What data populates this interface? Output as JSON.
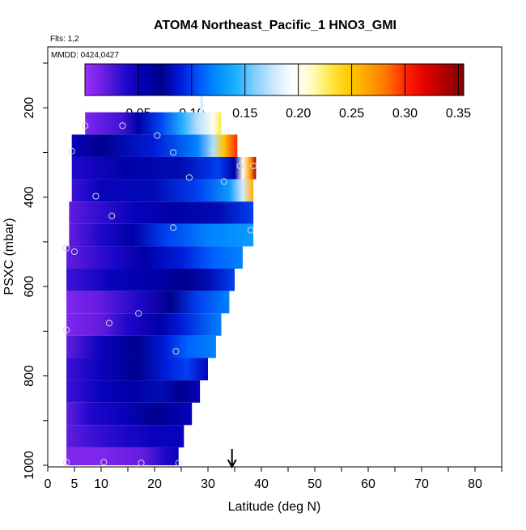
{
  "chart_data": {
    "type": "heatmap",
    "title": "ATOM4 Northeast_Pacific_1 HNO3_GMI",
    "flights_label": "Flts: 1,2",
    "dates_label": "MMDD: 0424,0427",
    "xlabel": "Latitude (deg N)",
    "ylabel": "PSXC (mbar)",
    "xlim": [
      0,
      85
    ],
    "ylim": [
      1000,
      100
    ],
    "x_ticks": [
      0,
      5,
      10,
      20,
      30,
      40,
      50,
      60,
      70,
      80
    ],
    "y_ticks": [
      200,
      400,
      600,
      800,
      1000
    ],
    "colorbar": {
      "min": 0,
      "max": 0.355,
      "ticks": [
        0.05,
        0.1,
        0.15,
        0.2,
        0.25,
        0.3,
        0.35
      ],
      "tick_labels": [
        "0.05",
        "0.10",
        "0.15",
        "0.20",
        "0.25",
        "0.30",
        "0.35"
      ],
      "colors": [
        "#9b30ff",
        "#6a1fe0",
        "#2a0ad0",
        "#0000b8",
        "#00008b",
        "#0018d8",
        "#0055ff",
        "#0090ff",
        "#1eb0ff",
        "#87d0ff",
        "#cfe8ff",
        "#ffffff",
        "#fffcc0",
        "#ffe640",
        "#ffc800",
        "#ffa000",
        "#ff7000",
        "#ff2000",
        "#e00000",
        "#b00000",
        "#800000"
      ]
    },
    "marker_latitude": 34.5,
    "rows": [
      {
        "p_top": 210,
        "p_bot": 260,
        "x_start": 7,
        "x_end": 32.5,
        "ramp": [
          [
            7,
            0.01
          ],
          [
            14,
            0.03
          ],
          [
            17,
            0.06
          ],
          [
            21,
            0.1
          ],
          [
            25,
            0.14
          ],
          [
            28,
            0.17
          ],
          [
            31,
            0.2
          ],
          [
            32.5,
            0.23
          ]
        ]
      },
      {
        "p_top": 260,
        "p_bot": 310,
        "x_start": 4.5,
        "x_end": 35.5,
        "ramp": [
          [
            4.5,
            0.05
          ],
          [
            10,
            0.07
          ],
          [
            20,
            0.09
          ],
          [
            28,
            0.12
          ],
          [
            31,
            0.17
          ],
          [
            33,
            0.25
          ],
          [
            35.5,
            0.3
          ]
        ]
      },
      {
        "p_top": 310,
        "p_bot": 360,
        "x_start": 4.5,
        "x_end": 39,
        "ramp": [
          [
            4.5,
            0.04
          ],
          [
            15,
            0.06
          ],
          [
            25,
            0.08
          ],
          [
            32,
            0.1
          ],
          [
            35,
            0.06
          ],
          [
            36.5,
            0.2
          ],
          [
            38,
            0.27
          ],
          [
            39,
            0.34
          ]
        ]
      },
      {
        "p_top": 360,
        "p_bot": 410,
        "x_start": 4.5,
        "x_end": 38.5,
        "ramp": [
          [
            4.5,
            0.03
          ],
          [
            10,
            0.05
          ],
          [
            20,
            0.08
          ],
          [
            28,
            0.1
          ],
          [
            34,
            0.13
          ],
          [
            36.5,
            0.18
          ],
          [
            38.5,
            0.26
          ]
        ]
      },
      {
        "p_top": 410,
        "p_bot": 460,
        "x_start": 4,
        "x_end": 38.5,
        "ramp": [
          [
            4,
            0.02
          ],
          [
            8,
            0.03
          ],
          [
            16,
            0.05
          ],
          [
            24,
            0.06
          ],
          [
            32,
            0.08
          ],
          [
            38.5,
            0.1
          ]
        ]
      },
      {
        "p_top": 460,
        "p_bot": 510,
        "x_start": 4,
        "x_end": 38.5,
        "ramp": [
          [
            4,
            0.02
          ],
          [
            10,
            0.04
          ],
          [
            16,
            0.06
          ],
          [
            22,
            0.1
          ],
          [
            30,
            0.12
          ],
          [
            38.5,
            0.13
          ]
        ]
      },
      {
        "p_top": 510,
        "p_bot": 560,
        "x_start": 3.5,
        "x_end": 36.5,
        "ramp": [
          [
            3.5,
            0.02
          ],
          [
            12,
            0.04
          ],
          [
            18,
            0.06
          ],
          [
            25,
            0.09
          ],
          [
            31,
            0.11
          ],
          [
            36.5,
            0.12
          ]
        ]
      },
      {
        "p_top": 560,
        "p_bot": 610,
        "x_start": 3.5,
        "x_end": 35,
        "ramp": [
          [
            3.5,
            0.03
          ],
          [
            12,
            0.05
          ],
          [
            20,
            0.06
          ],
          [
            26,
            0.07
          ],
          [
            30,
            0.08
          ],
          [
            35,
            0.1
          ]
        ]
      },
      {
        "p_top": 610,
        "p_bot": 660,
        "x_start": 3.5,
        "x_end": 34,
        "ramp": [
          [
            3.5,
            0.01
          ],
          [
            10,
            0.02
          ],
          [
            17,
            0.04
          ],
          [
            23,
            0.07
          ],
          [
            28,
            0.1
          ],
          [
            34,
            0.12
          ]
        ]
      },
      {
        "p_top": 660,
        "p_bot": 710,
        "x_start": 3.5,
        "x_end": 32.5,
        "ramp": [
          [
            3.5,
            0.01
          ],
          [
            10,
            0.02
          ],
          [
            15,
            0.04
          ],
          [
            21,
            0.06
          ],
          [
            25,
            0.09
          ],
          [
            32.5,
            0.12
          ]
        ]
      },
      {
        "p_top": 710,
        "p_bot": 760,
        "x_start": 3.5,
        "x_end": 31.5,
        "ramp": [
          [
            3.5,
            0.02
          ],
          [
            10,
            0.05
          ],
          [
            17,
            0.07
          ],
          [
            22,
            0.09
          ],
          [
            26,
            0.11
          ],
          [
            31.5,
            0.12
          ]
        ]
      },
      {
        "p_top": 760,
        "p_bot": 810,
        "x_start": 3.5,
        "x_end": 30,
        "ramp": [
          [
            3.5,
            0.03
          ],
          [
            10,
            0.05
          ],
          [
            17,
            0.07
          ],
          [
            22,
            0.09
          ],
          [
            26,
            0.1
          ],
          [
            30,
            0.05
          ]
        ]
      },
      {
        "p_top": 810,
        "p_bot": 860,
        "x_start": 3.5,
        "x_end": 28.5,
        "ramp": [
          [
            3.5,
            0.03
          ],
          [
            10,
            0.05
          ],
          [
            16,
            0.06
          ],
          [
            21,
            0.08
          ],
          [
            25,
            0.07
          ],
          [
            28.5,
            0.05
          ]
        ]
      },
      {
        "p_top": 860,
        "p_bot": 910,
        "x_start": 3.5,
        "x_end": 27,
        "ramp": [
          [
            3.5,
            0.02
          ],
          [
            8,
            0.04
          ],
          [
            14,
            0.05
          ],
          [
            20,
            0.07
          ],
          [
            24,
            0.06
          ],
          [
            27,
            0.05
          ]
        ]
      },
      {
        "p_top": 910,
        "p_bot": 960,
        "x_start": 3.5,
        "x_end": 25.5,
        "ramp": [
          [
            3.5,
            0.02
          ],
          [
            8,
            0.03
          ],
          [
            14,
            0.04
          ],
          [
            20,
            0.05
          ],
          [
            25.5,
            0.05
          ]
        ]
      },
      {
        "p_top": 960,
        "p_bot": 1000,
        "x_start": 3.5,
        "x_end": 24.5,
        "ramp": [
          [
            3.5,
            0.01
          ],
          [
            10,
            0.01
          ],
          [
            18,
            0.02
          ],
          [
            22,
            0.04
          ],
          [
            24.5,
            0.05
          ]
        ]
      }
    ],
    "points": [
      {
        "lat": 7,
        "p": 240
      },
      {
        "lat": 14,
        "p": 240
      },
      {
        "lat": 20.5,
        "p": 262
      },
      {
        "lat": 4.5,
        "p": 297
      },
      {
        "lat": 23.5,
        "p": 300
      },
      {
        "lat": 31,
        "p": 300
      },
      {
        "lat": 26.5,
        "p": 356
      },
      {
        "lat": 33,
        "p": 365
      },
      {
        "lat": 36,
        "p": 330
      },
      {
        "lat": 38.5,
        "p": 330
      },
      {
        "lat": 9,
        "p": 398
      },
      {
        "lat": 12,
        "p": 442
      },
      {
        "lat": 23.5,
        "p": 468
      },
      {
        "lat": 38,
        "p": 474
      },
      {
        "lat": 3.5,
        "p": 514
      },
      {
        "lat": 5,
        "p": 522
      },
      {
        "lat": 17,
        "p": 660
      },
      {
        "lat": 11.5,
        "p": 682
      },
      {
        "lat": 3.5,
        "p": 697
      },
      {
        "lat": 24,
        "p": 745
      },
      {
        "lat": 3.5,
        "p": 993
      },
      {
        "lat": 10.5,
        "p": 993
      },
      {
        "lat": 17.5,
        "p": 995
      },
      {
        "lat": 24.5,
        "p": 995
      }
    ]
  }
}
